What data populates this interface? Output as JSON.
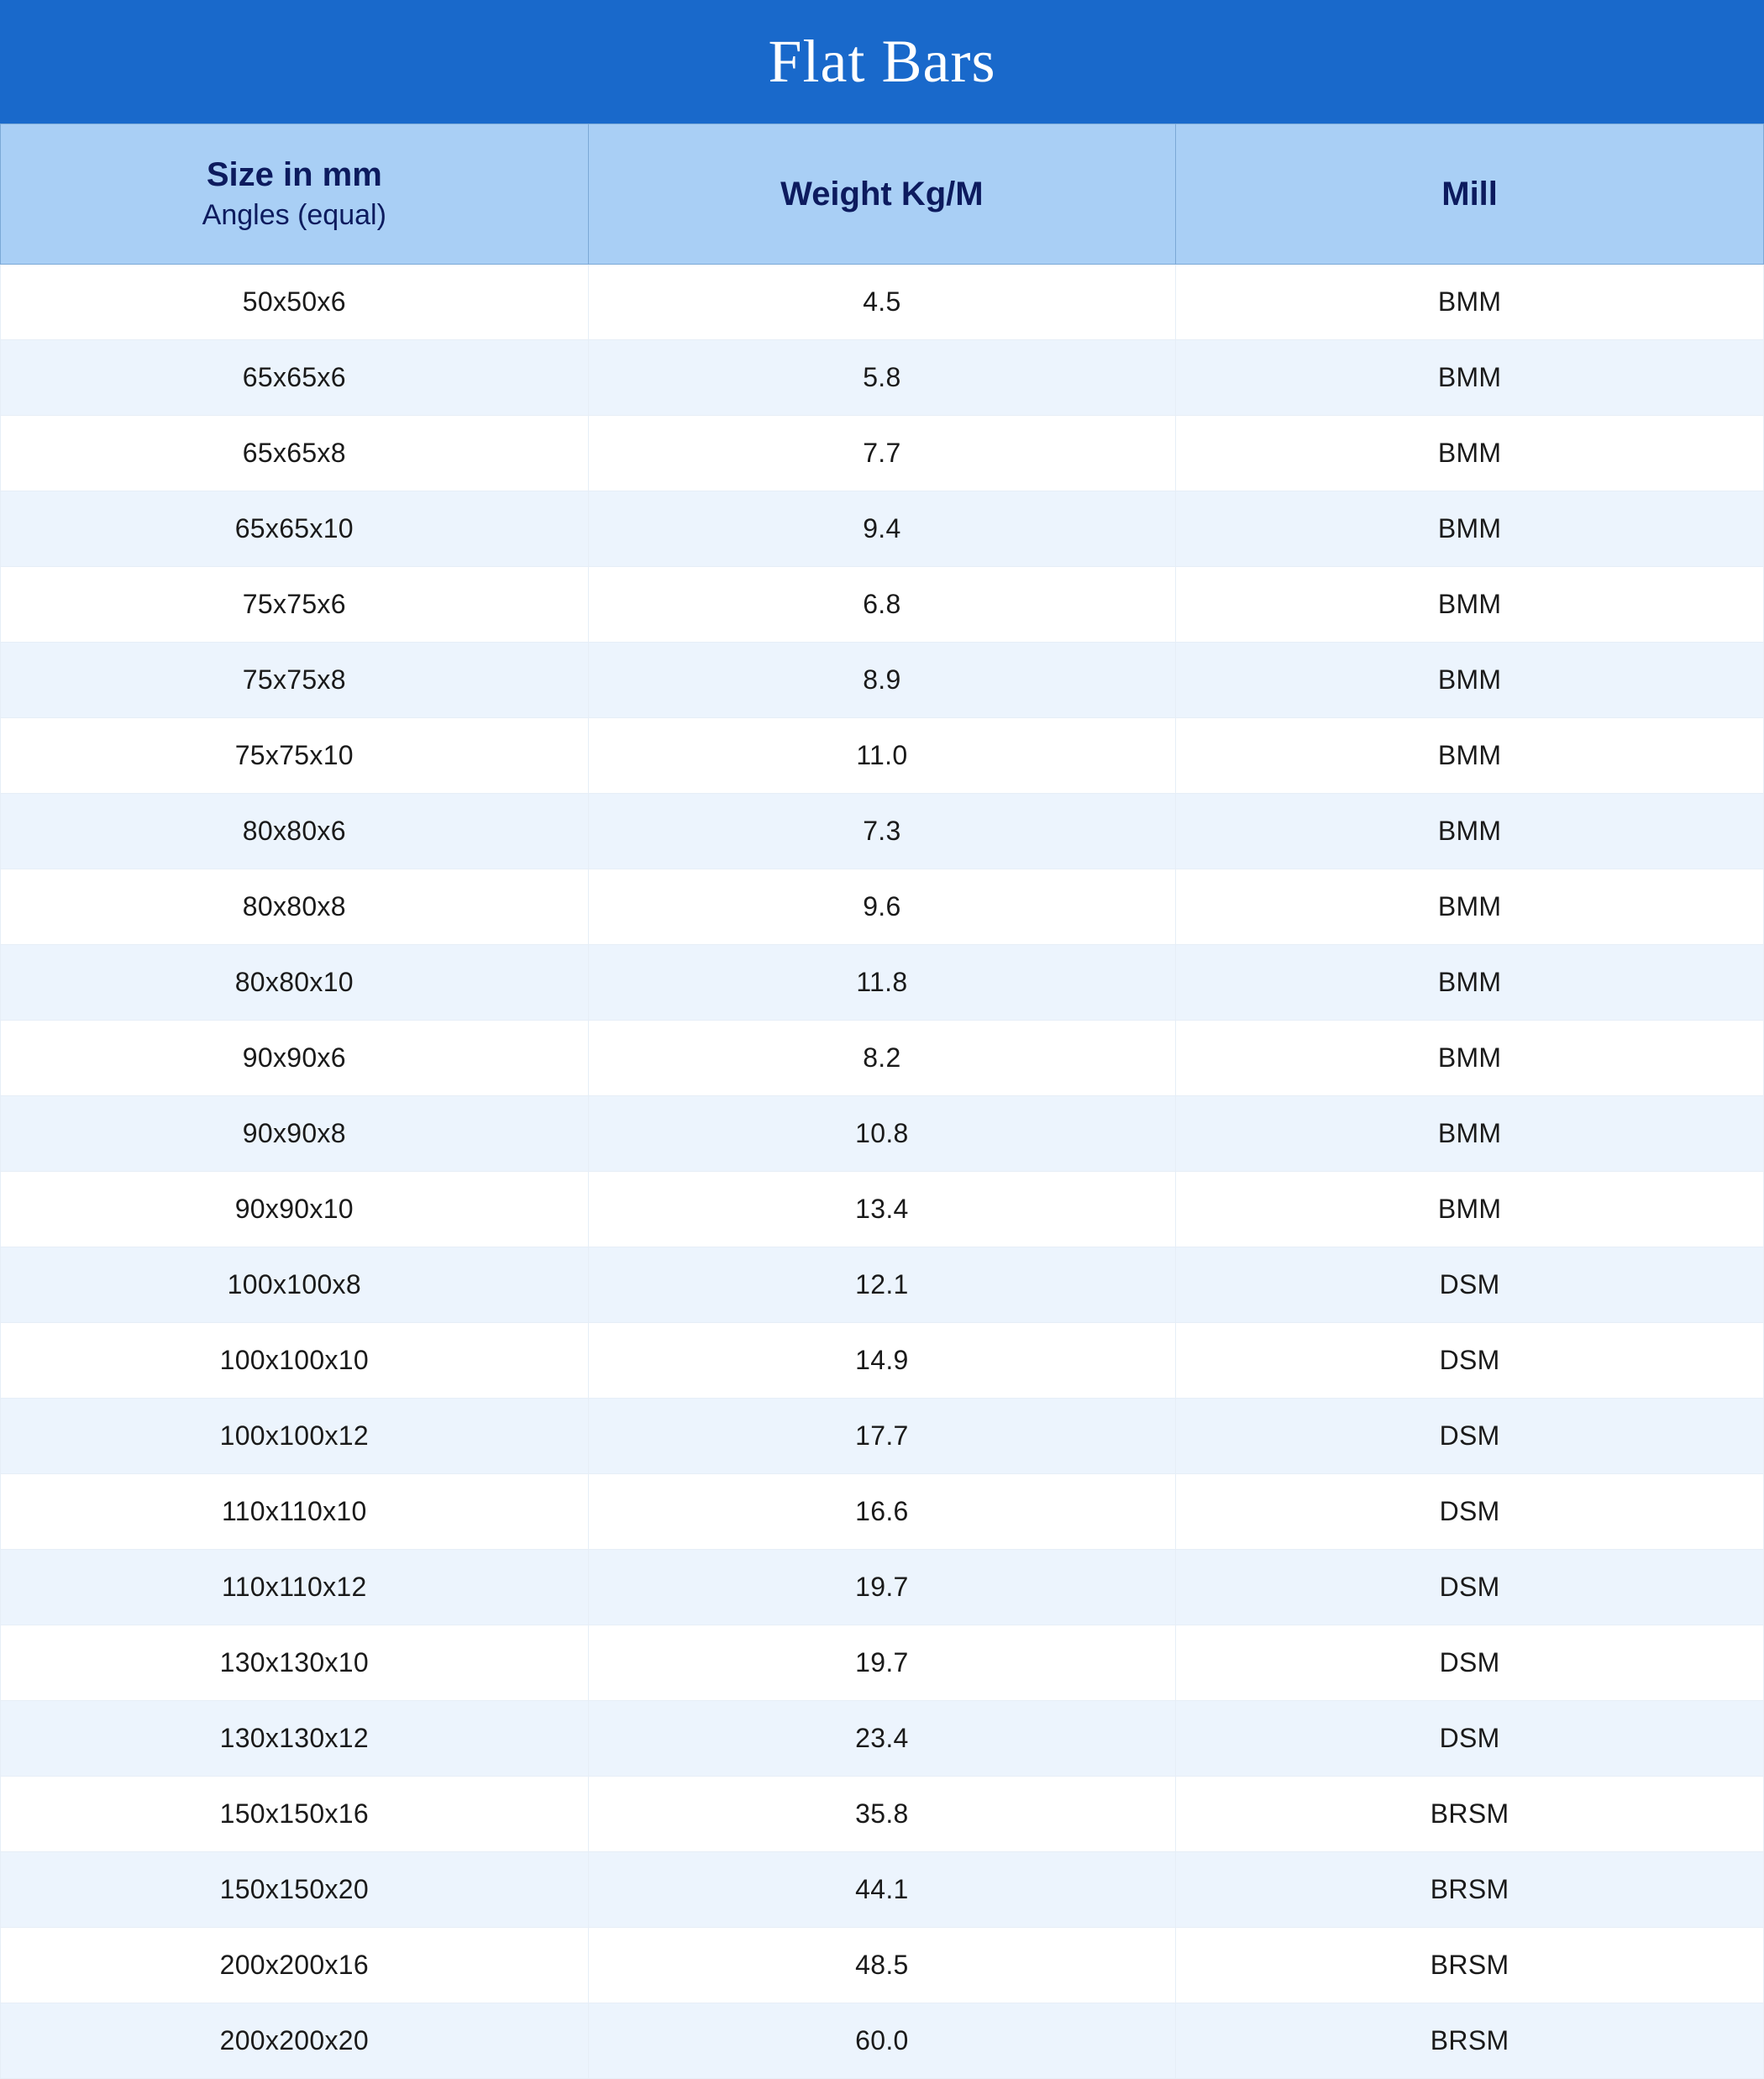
{
  "title": "Flat Bars",
  "colors": {
    "title_bg": "#1969cb",
    "title_text": "#ffffff",
    "header_bg": "#a9cff5",
    "header_text": "#0d1b5e",
    "header_border": "#7ba9d6",
    "row_odd_bg": "#ffffff",
    "row_even_bg": "#ecf4fd",
    "cell_text": "#1a1a1a",
    "cell_border": "#e6eef7"
  },
  "typography": {
    "title_fontsize": 72,
    "header_title_fontsize": 40,
    "header_subtitle_fontsize": 34,
    "cell_fontsize": 32
  },
  "table": {
    "columns": [
      {
        "title": "Size in mm",
        "subtitle": "Angles (equal)",
        "width_pct": 33.33
      },
      {
        "title": "Weight Kg/M",
        "subtitle": "",
        "width_pct": 33.33
      },
      {
        "title": "Mill",
        "subtitle": "",
        "width_pct": 33.34
      }
    ],
    "rows": [
      [
        "50x50x6",
        "4.5",
        "BMM"
      ],
      [
        "65x65x6",
        "5.8",
        "BMM"
      ],
      [
        "65x65x8",
        "7.7",
        "BMM"
      ],
      [
        "65x65x10",
        "9.4",
        "BMM"
      ],
      [
        "75x75x6",
        "6.8",
        "BMM"
      ],
      [
        "75x75x8",
        "8.9",
        "BMM"
      ],
      [
        "75x75x10",
        "11.0",
        "BMM"
      ],
      [
        "80x80x6",
        "7.3",
        "BMM"
      ],
      [
        "80x80x8",
        "9.6",
        "BMM"
      ],
      [
        "80x80x10",
        "11.8",
        "BMM"
      ],
      [
        "90x90x6",
        "8.2",
        "BMM"
      ],
      [
        "90x90x8",
        "10.8",
        "BMM"
      ],
      [
        "90x90x10",
        "13.4",
        "BMM"
      ],
      [
        "100x100x8",
        "12.1",
        "DSM"
      ],
      [
        "100x100x10",
        "14.9",
        "DSM"
      ],
      [
        "100x100x12",
        "17.7",
        "DSM"
      ],
      [
        "110x110x10",
        "16.6",
        "DSM"
      ],
      [
        "110x110x12",
        "19.7",
        "DSM"
      ],
      [
        "130x130x10",
        "19.7",
        "DSM"
      ],
      [
        "130x130x12",
        "23.4",
        "DSM"
      ],
      [
        "150x150x16",
        "35.8",
        "BRSM"
      ],
      [
        "150x150x20",
        "44.1",
        "BRSM"
      ],
      [
        "200x200x16",
        "48.5",
        "BRSM"
      ],
      [
        "200x200x20",
        "60.0",
        "BRSM"
      ]
    ]
  }
}
